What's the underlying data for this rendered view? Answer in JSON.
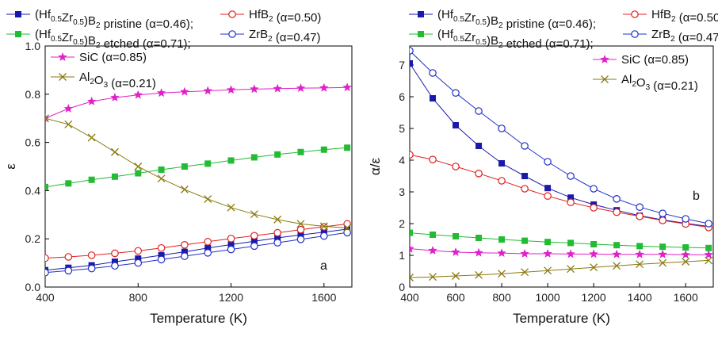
{
  "chart_data": [
    {
      "type": "line",
      "panel_label": "a",
      "xlabel": "Temperature (K)",
      "ylabel": "ε",
      "xlim": [
        400,
        1720
      ],
      "ylim": [
        0.0,
        1.0
      ],
      "xticks": [
        "400",
        "800",
        "1200",
        "1600"
      ],
      "yticks": [
        "0.0",
        "0.2",
        "0.4",
        "0.6",
        "0.8",
        "1.0"
      ],
      "x": [
        400,
        500,
        600,
        700,
        800,
        900,
        1000,
        1100,
        1200,
        1300,
        1400,
        1500,
        1600,
        1700
      ],
      "series": [
        {
          "id": "pristine",
          "color": "#1a1aaa",
          "marker": "square-filled",
          "values": [
            0.07,
            0.08,
            0.09,
            0.105,
            0.118,
            0.132,
            0.146,
            0.162,
            0.176,
            0.19,
            0.204,
            0.216,
            0.228,
            0.24
          ]
        },
        {
          "id": "etched",
          "color": "#22bb33",
          "marker": "square-filled",
          "values": [
            0.415,
            0.43,
            0.445,
            0.458,
            0.472,
            0.487,
            0.5,
            0.512,
            0.525,
            0.538,
            0.55,
            0.56,
            0.57,
            0.578
          ]
        },
        {
          "id": "hfb2",
          "color": "#e02020",
          "marker": "circle-open",
          "values": [
            0.12,
            0.125,
            0.132,
            0.14,
            0.15,
            0.162,
            0.175,
            0.188,
            0.201,
            0.213,
            0.225,
            0.238,
            0.25,
            0.262
          ]
        },
        {
          "id": "zrb2",
          "color": "#2030c8",
          "marker": "circle-open",
          "values": [
            0.06,
            0.068,
            0.077,
            0.088,
            0.1,
            0.114,
            0.128,
            0.142,
            0.156,
            0.17,
            0.184,
            0.198,
            0.212,
            0.226
          ]
        },
        {
          "id": "sic",
          "color": "#e020c8",
          "marker": "star",
          "values": [
            0.7,
            0.74,
            0.77,
            0.786,
            0.797,
            0.805,
            0.81,
            0.814,
            0.818,
            0.821,
            0.823,
            0.825,
            0.826,
            0.828
          ]
        },
        {
          "id": "al2o3",
          "color": "#8a7a10",
          "marker": "x",
          "values": [
            0.7,
            0.675,
            0.62,
            0.56,
            0.5,
            0.45,
            0.405,
            0.365,
            0.33,
            0.302,
            0.28,
            0.262,
            0.252,
            0.245
          ]
        }
      ]
    },
    {
      "type": "line",
      "panel_label": "b",
      "xlabel": "Temperature (K)",
      "ylabel": "α/ε",
      "xlim": [
        400,
        1720
      ],
      "ylim": [
        0,
        7.6
      ],
      "xticks": [
        "400",
        "600",
        "800",
        "1000",
        "1200",
        "1400",
        "1600"
      ],
      "yticks": [
        "0",
        "1",
        "2",
        "3",
        "4",
        "5",
        "6",
        "7"
      ],
      "x": [
        400,
        500,
        600,
        700,
        800,
        900,
        1000,
        1100,
        1200,
        1300,
        1400,
        1500,
        1600,
        1700
      ],
      "series": [
        {
          "id": "pristine",
          "color": "#1a1aaa",
          "marker": "square-filled",
          "values": [
            7.05,
            5.95,
            5.1,
            4.45,
            3.9,
            3.5,
            3.12,
            2.82,
            2.6,
            2.42,
            2.25,
            2.12,
            2.01,
            1.91
          ]
        },
        {
          "id": "etched",
          "color": "#22bb33",
          "marker": "square-filled",
          "values": [
            1.71,
            1.65,
            1.6,
            1.55,
            1.5,
            1.46,
            1.42,
            1.39,
            1.35,
            1.32,
            1.29,
            1.27,
            1.25,
            1.23
          ]
        },
        {
          "id": "hfb2",
          "color": "#e02020",
          "marker": "circle-open",
          "values": [
            4.17,
            4.02,
            3.8,
            3.58,
            3.35,
            3.1,
            2.87,
            2.67,
            2.5,
            2.36,
            2.23,
            2.1,
            1.99,
            1.88
          ]
        },
        {
          "id": "zrb2",
          "color": "#2030c8",
          "marker": "circle-open",
          "values": [
            7.45,
            6.75,
            6.12,
            5.55,
            5.0,
            4.45,
            3.95,
            3.5,
            3.1,
            2.78,
            2.52,
            2.32,
            2.15,
            2.0
          ]
        },
        {
          "id": "sic",
          "color": "#e020c8",
          "marker": "star",
          "values": [
            1.21,
            1.15,
            1.1,
            1.08,
            1.07,
            1.05,
            1.05,
            1.04,
            1.04,
            1.03,
            1.03,
            1.03,
            1.02,
            1.02
          ]
        },
        {
          "id": "al2o3",
          "color": "#8a7a10",
          "marker": "x",
          "values": [
            0.3,
            0.32,
            0.35,
            0.38,
            0.42,
            0.47,
            0.52,
            0.57,
            0.62,
            0.67,
            0.72,
            0.76,
            0.8,
            0.84
          ]
        }
      ]
    }
  ],
  "legend": {
    "pristine": {
      "pre": "(Hf",
      "s1": "0.5",
      "mid": "Zr",
      "s2": "0.5",
      "post": ")B",
      "s3": "2",
      "tail": " pristine (α=0.46);"
    },
    "etched": {
      "pre": "(Hf",
      "s1": "0.5",
      "mid": "Zr",
      "s2": "0.5",
      "post": ")B",
      "s3": "2",
      "tail": " etched (α=0.71);"
    },
    "hfb2": {
      "pre": "HfB",
      "s": "2",
      "tail": " (α=0.50)"
    },
    "zrb2": {
      "pre": "ZrB",
      "s": "2",
      "tail": " (α=0.47)"
    },
    "sic": {
      "text": "SiC (α=0.85)"
    },
    "al2o3": {
      "pre": "Al",
      "s1": "2",
      "mid": "O",
      "s2": "3",
      "tail": " (α=0.21)"
    }
  }
}
